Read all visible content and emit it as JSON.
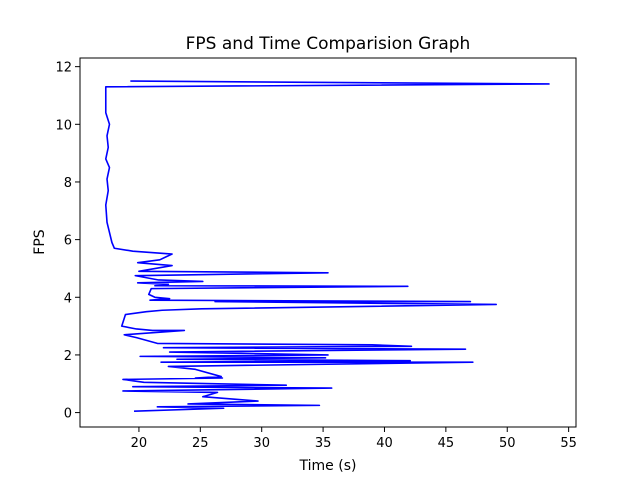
{
  "chart_data": {
    "type": "line",
    "title": "FPS and Time Comparision Graph",
    "xlabel": "Time (s)",
    "ylabel": "FPS",
    "xlim": [
      15.2,
      55.6
    ],
    "ylim": [
      -0.5,
      12.3
    ],
    "xticks": [
      20,
      25,
      30,
      35,
      40,
      45,
      50,
      55
    ],
    "yticks": [
      0,
      2,
      4,
      6,
      8,
      10,
      12
    ],
    "grid": false,
    "line_color": "#0000ff",
    "series": [
      {
        "x": [
          19.3,
          19.6,
          53.4,
          17.3,
          17.3,
          17.6,
          17.4,
          17.5,
          17.3,
          17.6,
          17.4,
          17.5,
          17.3,
          17.4,
          17.8,
          18.0,
          19.5,
          22.7,
          22.2,
          21.7,
          19.9,
          22.7,
          20.0,
          35.4,
          19.7,
          21.6,
          25.2,
          19.9,
          22.4,
          21.3,
          41.9,
          21.0,
          20.8,
          21.3,
          22.5,
          20.9,
          47.0,
          26.2,
          49.1,
          25.1,
          21.9,
          20.6,
          18.9,
          18.6,
          19.8,
          21.1,
          23.7,
          18.8,
          19.8,
          21.5,
          39.0,
          42.2,
          22.0,
          46.6,
          22.5,
          35.4,
          20.1,
          35.2,
          23.1,
          42.1,
          21.8,
          47.2,
          22.4,
          24.6,
          26.7,
          24.6,
          26.8,
          18.7,
          20.4,
          32.0,
          19.5,
          35.7,
          18.7,
          26.4,
          25.2,
          29.7,
          24.0,
          34.7,
          21.5,
          26.9,
          19.6
        ],
        "y": [
          11.5,
          11.5,
          11.4,
          11.3,
          10.4,
          10.0,
          9.6,
          9.2,
          8.8,
          8.5,
          8.1,
          7.7,
          7.2,
          6.6,
          5.9,
          5.7,
          5.6,
          5.5,
          5.4,
          5.3,
          5.2,
          5.1,
          4.9,
          4.85,
          4.75,
          4.6,
          4.55,
          4.5,
          4.45,
          4.4,
          4.38,
          4.3,
          4.1,
          4.0,
          3.95,
          3.9,
          3.85,
          3.85,
          3.75,
          3.6,
          3.55,
          3.5,
          3.4,
          3.0,
          2.9,
          2.85,
          2.85,
          2.7,
          2.6,
          2.4,
          2.35,
          2.3,
          2.25,
          2.2,
          2.1,
          2.0,
          1.95,
          1.9,
          1.85,
          1.8,
          1.75,
          1.75,
          1.6,
          1.5,
          1.25,
          1.2,
          1.2,
          1.15,
          1.05,
          0.95,
          0.9,
          0.85,
          0.75,
          0.7,
          0.55,
          0.4,
          0.3,
          0.25,
          0.2,
          0.15,
          0.05
        ]
      }
    ]
  }
}
